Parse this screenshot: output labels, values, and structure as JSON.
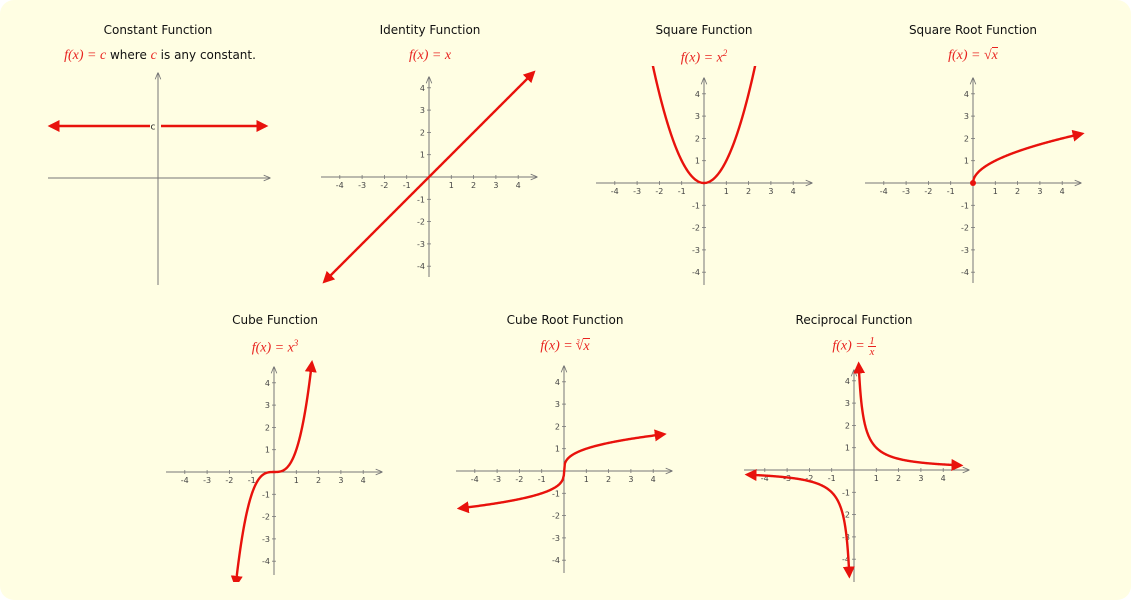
{
  "colors": {
    "background": "#fffee3",
    "curve": "#e8120c",
    "axis": "#777777",
    "formula": "#e8231f"
  },
  "panels": {
    "constant": {
      "title": "Constant Function",
      "formula_lhs": "f(x) = c",
      "formula_suffix": " where ",
      "formula_var": "c",
      "formula_tail": " is any constant.",
      "c_label": "c"
    },
    "identity": {
      "title": "Identity Function",
      "formula": "f(x) = x"
    },
    "square": {
      "title": "Square Function",
      "formula": "f(x) = x",
      "formula_exp": "2"
    },
    "sqrt": {
      "title": "Square Root Function",
      "formula_lhs": "f(x) = ",
      "formula_rad": "x"
    },
    "cube": {
      "title": "Cube Function",
      "formula": "f(x) = x",
      "formula_exp": "3"
    },
    "cuberoot": {
      "title": "Cube Root Function",
      "formula_lhs": "f(x) = ",
      "formula_idx": "3",
      "formula_rad": "x"
    },
    "reciprocal": {
      "title": "Reciprocal Function",
      "formula_lhs": "f(x) = ",
      "formula_num": "1",
      "formula_den": "x"
    }
  },
  "tick_labels": [
    "-4",
    "-3",
    "-2",
    "-1",
    "1",
    "2",
    "3",
    "4"
  ]
}
